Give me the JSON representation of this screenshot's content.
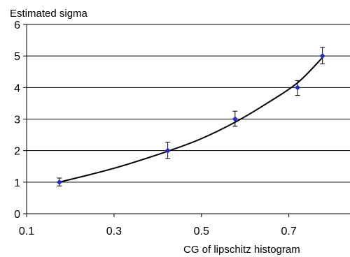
{
  "chart_data": {
    "type": "scatter",
    "title": "",
    "ylabel": "Estimated sigma",
    "xlabel": "CG of lipschitz histogram",
    "xlim": [
      0.1,
      0.84
    ],
    "ylim": [
      0,
      6
    ],
    "xticks": [
      "0.1",
      "0.3",
      "0.5",
      "0.7"
    ],
    "xtick_values": [
      0.1,
      0.3,
      0.5,
      0.7
    ],
    "yticks": [
      "0",
      "1",
      "2",
      "3",
      "4",
      "5",
      "6"
    ],
    "ytick_values": [
      0,
      1,
      2,
      3,
      4,
      5,
      6
    ],
    "grid": "horizontal",
    "legend": "none",
    "series": [
      {
        "marker": "diamond",
        "color": "#1f2ccc",
        "points": [
          {
            "x": 0.175,
            "y": 1.0,
            "err_low": 0.12,
            "err_high": 0.13
          },
          {
            "x": 0.423,
            "y": 2.0,
            "err_low": 0.25,
            "err_high": 0.27
          },
          {
            "x": 0.577,
            "y": 3.0,
            "err_low": 0.23,
            "err_high": 0.25
          },
          {
            "x": 0.72,
            "y": 4.0,
            "err_low": 0.25,
            "err_high": 0.22
          },
          {
            "x": 0.777,
            "y": 5.0,
            "err_low": 0.25,
            "err_high": 0.27
          }
        ]
      }
    ],
    "trendline": {
      "color": "#000000",
      "points": [
        {
          "x": 0.175,
          "y": 1.0
        },
        {
          "x": 0.3,
          "y": 1.44
        },
        {
          "x": 0.423,
          "y": 1.98
        },
        {
          "x": 0.5,
          "y": 2.38
        },
        {
          "x": 0.577,
          "y": 2.9
        },
        {
          "x": 0.65,
          "y": 3.5
        },
        {
          "x": 0.72,
          "y": 4.15
        },
        {
          "x": 0.777,
          "y": 4.95
        }
      ]
    }
  }
}
